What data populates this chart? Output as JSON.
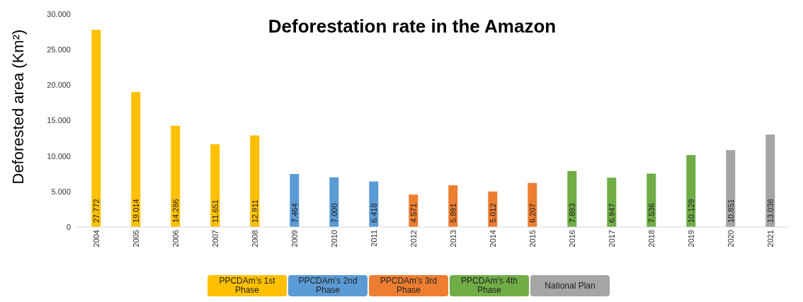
{
  "chart_data": {
    "type": "bar",
    "title": "Deforestation rate in the Amazon",
    "ylabel": "Deforested area (Km²)",
    "categories": [
      "2004",
      "2005",
      "2006",
      "2007",
      "2008",
      "2009",
      "2010",
      "2011",
      "2012",
      "2013",
      "2014",
      "2015",
      "2016",
      "2017",
      "2018",
      "2019",
      "2020",
      "2021"
    ],
    "stacked": true,
    "series": [
      {
        "name": "PPCDAm’s 1st Phase",
        "color": "#ffc000",
        "values": [
          27772,
          19014,
          14286,
          11651,
          12911,
          null,
          null,
          null,
          null,
          null,
          null,
          null,
          null,
          null,
          null,
          null,
          null,
          null
        ],
        "value_labels": [
          "27.772",
          "19.014",
          "14.286",
          "11.651",
          "12.911",
          null,
          null,
          null,
          null,
          null,
          null,
          null,
          null,
          null,
          null,
          null,
          null,
          null
        ]
      },
      {
        "name": "PPCDAm’s 2nd Phase",
        "color": "#5b9bd5",
        "values": [
          null,
          null,
          null,
          null,
          null,
          7464,
          7000,
          6418,
          null,
          null,
          null,
          null,
          null,
          null,
          null,
          null,
          null,
          null
        ],
        "value_labels": [
          null,
          null,
          null,
          null,
          null,
          "7.464",
          "7.000",
          "6.418",
          null,
          null,
          null,
          null,
          null,
          null,
          null,
          null,
          null,
          null
        ]
      },
      {
        "name": "PPCDAm’s 3rd Phase",
        "color": "#ed7d31",
        "values": [
          null,
          null,
          null,
          null,
          null,
          null,
          null,
          null,
          4571,
          5891,
          5012,
          6207,
          null,
          null,
          null,
          null,
          null,
          null
        ],
        "value_labels": [
          null,
          null,
          null,
          null,
          null,
          null,
          null,
          null,
          "4.571",
          "5.891",
          "5.012",
          "6.207",
          null,
          null,
          null,
          null,
          null,
          null
        ]
      },
      {
        "name": "PPCDAm’s 4th Phase",
        "color": "#70ad47",
        "values": [
          null,
          null,
          null,
          null,
          null,
          null,
          null,
          null,
          null,
          null,
          null,
          null,
          7893,
          6947,
          7536,
          10129,
          null,
          null
        ],
        "value_labels": [
          null,
          null,
          null,
          null,
          null,
          null,
          null,
          null,
          null,
          null,
          null,
          null,
          "7.893",
          "6.947",
          "7.536",
          "10.129",
          null,
          null
        ]
      },
      {
        "name": "National Plan",
        "color": "#a5a5a5",
        "values": [
          null,
          null,
          null,
          null,
          null,
          null,
          null,
          null,
          null,
          null,
          null,
          null,
          null,
          null,
          null,
          null,
          10851,
          13038
        ],
        "value_labels": [
          null,
          null,
          null,
          null,
          null,
          null,
          null,
          null,
          null,
          null,
          null,
          null,
          null,
          null,
          null,
          null,
          "10.851",
          "13.038"
        ]
      }
    ],
    "ylim": [
      0,
      30000
    ],
    "yticks": [
      {
        "value": 0,
        "label": "0"
      },
      {
        "value": 5000,
        "label": "5.000"
      },
      {
        "value": 10000,
        "label": "10.000"
      },
      {
        "value": 15000,
        "label": "15.000"
      },
      {
        "value": 20000,
        "label": "20.000"
      },
      {
        "value": 25000,
        "label": "25.000"
      },
      {
        "value": 30000,
        "label": "30.000"
      }
    ],
    "grid": false,
    "legend": "bottom"
  }
}
